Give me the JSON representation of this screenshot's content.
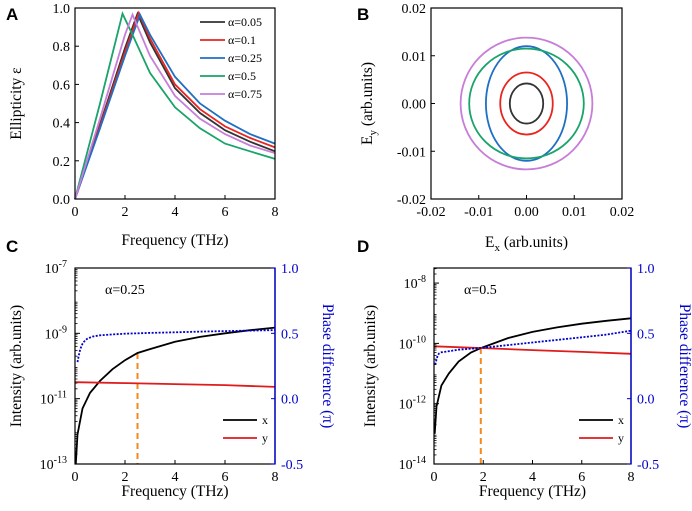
{
  "chart_data": [
    {
      "panel": "A",
      "type": "line",
      "xlabel": "Frequency (THz)",
      "ylabel": "Ellipticity ε",
      "xlim": [
        0,
        8
      ],
      "ylim": [
        0,
        1.0
      ],
      "xticks": [
        0,
        2,
        4,
        6,
        8
      ],
      "yticks": [
        0.0,
        0.2,
        0.4,
        0.6,
        0.8,
        1.0
      ],
      "ytick_labels": [
        "0.0",
        "0.2",
        "0.4",
        "0.6",
        "0.8",
        "1.0"
      ],
      "legend_position": "top-right",
      "series": [
        {
          "name": "α=0.05",
          "color": "#333333",
          "x": [
            0,
            1,
            2,
            2.5,
            3,
            4,
            5,
            6,
            7,
            8
          ],
          "y": [
            0,
            0.39,
            0.79,
            0.97,
            0.82,
            0.58,
            0.45,
            0.36,
            0.3,
            0.25
          ]
        },
        {
          "name": "α=0.1",
          "color": "#e8251f",
          "x": [
            0,
            1,
            2,
            2.55,
            3,
            4,
            5,
            6,
            7,
            8
          ],
          "y": [
            0,
            0.38,
            0.77,
            0.975,
            0.84,
            0.6,
            0.47,
            0.38,
            0.32,
            0.27
          ]
        },
        {
          "name": "α=0.25",
          "color": "#1f6fc4",
          "x": [
            0,
            1,
            2,
            2.6,
            3,
            4,
            5,
            6,
            7,
            8
          ],
          "y": [
            0,
            0.37,
            0.75,
            0.965,
            0.86,
            0.64,
            0.5,
            0.41,
            0.34,
            0.29
          ]
        },
        {
          "name": "α=0.5",
          "color": "#1aa36a",
          "x": [
            0,
            1,
            1.9,
            2.3,
            3,
            4,
            5,
            6,
            7,
            8
          ],
          "y": [
            0,
            0.5,
            0.97,
            0.86,
            0.66,
            0.48,
            0.37,
            0.29,
            0.25,
            0.21
          ]
        },
        {
          "name": "α=0.75",
          "color": "#c77ed9",
          "x": [
            0,
            1,
            2,
            2.3,
            3,
            4,
            5,
            6,
            7,
            8
          ],
          "y": [
            0,
            0.42,
            0.86,
            0.965,
            0.75,
            0.54,
            0.42,
            0.34,
            0.28,
            0.24
          ]
        }
      ]
    },
    {
      "panel": "B",
      "type": "line",
      "xlabel_main": "E",
      "xlabel_sub": "x",
      "xlabel_rest": " (arb.units)",
      "ylabel_main": "E",
      "ylabel_sub": "y",
      "ylabel_rest": " (arb.units)",
      "xlim": [
        -0.02,
        0.02
      ],
      "ylim": [
        -0.02,
        0.02
      ],
      "xticks": [
        -0.02,
        -0.01,
        0.0,
        0.01,
        0.02
      ],
      "xtick_labels": [
        "-0.02",
        "-0.01",
        "0.00",
        "0.01",
        "0.02"
      ],
      "yticks": [
        -0.02,
        -0.01,
        0.0,
        0.01,
        0.02
      ],
      "ytick_labels": [
        "-0.02",
        "-0.01",
        "0.00",
        "0.01",
        "0.02"
      ],
      "ellipses": [
        {
          "color": "#333333",
          "cx": 0,
          "cy": 0,
          "rx": 0.0035,
          "ry": 0.0042
        },
        {
          "color": "#e8251f",
          "cx": 0,
          "cy": 0,
          "rx": 0.0055,
          "ry": 0.0065
        },
        {
          "color": "#1f6fc4",
          "cx": 0,
          "cy": 0,
          "rx": 0.0085,
          "ry": 0.012
        },
        {
          "color": "#1aa36a",
          "cx": 0,
          "cy": 0,
          "rx": 0.012,
          "ry": 0.0115
        },
        {
          "color": "#c77ed9",
          "cx": 0,
          "cy": 0,
          "rx": 0.0138,
          "ry": 0.0138
        }
      ]
    },
    {
      "panel": "C",
      "type": "line",
      "annotation": "α=0.25",
      "xlabel": "Frequency (THz)",
      "ylabel_left": "Intensity (arb.units)",
      "ylabel_right": "Phase difference (π)",
      "xlim": [
        0,
        8
      ],
      "xticks": [
        0,
        2,
        4,
        6,
        8
      ],
      "ylim_left_log10": [
        -13,
        -7
      ],
      "yticks_left_exp": [
        -13,
        -11,
        -9,
        -7
      ],
      "ylim_right": [
        -0.5,
        1.0
      ],
      "yticks_right": [
        -0.5,
        0.0,
        0.5,
        1.0
      ],
      "ytick_right_labels": [
        "-0.5",
        "0.0",
        "0.5",
        "1.0"
      ],
      "intersection_x": 2.5,
      "series": [
        {
          "name": "x",
          "color": "#000000",
          "axis": "left",
          "x": [
            0.03,
            0.1,
            0.3,
            0.6,
            1,
            1.5,
            2,
            2.5,
            3,
            4,
            5,
            6,
            7,
            8
          ],
          "y": [
            1e-13,
            8e-13,
            5e-12,
            1.5e-11,
            3.5e-11,
            8e-11,
            1.5e-10,
            2.5e-10,
            3.3e-10,
            5.5e-10,
            7.8e-10,
            1e-09,
            1.25e-09,
            1.5e-09
          ]
        },
        {
          "name": "y",
          "color": "#e01b1b",
          "axis": "left",
          "x": [
            0,
            2,
            4,
            6,
            8
          ],
          "y": [
            3.2e-11,
            3e-11,
            2.8e-11,
            2.6e-11,
            2.3e-11
          ]
        },
        {
          "name": "phase",
          "color": "#0000cc",
          "axis": "right",
          "x": [
            0.1,
            0.15,
            0.2,
            0.25,
            0.3,
            0.4,
            0.5,
            0.7,
            1,
            1.5,
            2,
            3,
            4,
            5,
            6,
            7,
            8
          ],
          "y": [
            0.28,
            0.33,
            0.37,
            0.4,
            0.42,
            0.445,
            0.46,
            0.475,
            0.485,
            0.492,
            0.497,
            0.503,
            0.508,
            0.513,
            0.517,
            0.521,
            0.525
          ]
        }
      ]
    },
    {
      "panel": "D",
      "type": "line",
      "annotation": "α=0.5",
      "xlabel": "Frequency (THz)",
      "ylabel_left": "Intensity (arb.units)",
      "ylabel_right": "Phase difference (π)",
      "xlim": [
        0,
        8
      ],
      "xticks": [
        0,
        2,
        4,
        6,
        8
      ],
      "ylim_left_log10": [
        -14,
        -7.5
      ],
      "yticks_left_exp": [
        -14,
        -12,
        -10,
        -8
      ],
      "ylim_right": [
        -0.5,
        1.0
      ],
      "yticks_right": [
        -0.5,
        0.0,
        0.5,
        1.0
      ],
      "ytick_right_labels": [
        "-0.5",
        "0.0",
        "0.5",
        "1.0"
      ],
      "intersection_x": 1.9,
      "series": [
        {
          "name": "x",
          "color": "#000000",
          "axis": "left",
          "x": [
            0.03,
            0.1,
            0.3,
            0.6,
            1,
            1.5,
            1.9,
            3,
            4,
            5,
            6,
            7,
            8
          ],
          "y": [
            1e-13,
            8e-13,
            4e-12,
            1e-11,
            2.5e-11,
            5e-11,
            7e-11,
            1.5e-10,
            2.4e-10,
            3.4e-10,
            4.5e-10,
            5.6e-10,
            6.8e-10
          ]
        },
        {
          "name": "y",
          "color": "#e01b1b",
          "axis": "left",
          "x": [
            0,
            2,
            4,
            6,
            8
          ],
          "y": [
            8e-11,
            7e-11,
            6e-11,
            5.2e-11,
            4.5e-11
          ]
        },
        {
          "name": "phase",
          "color": "#0000cc",
          "axis": "right",
          "x": [
            0.05,
            0.1,
            0.15,
            0.2,
            0.3,
            0.5,
            1,
            2,
            3,
            4,
            5,
            6,
            7,
            8
          ],
          "y": [
            0.26,
            0.3,
            0.33,
            0.345,
            0.355,
            0.36,
            0.375,
            0.39,
            0.41,
            0.43,
            0.45,
            0.47,
            0.49,
            0.52
          ]
        }
      ]
    }
  ]
}
